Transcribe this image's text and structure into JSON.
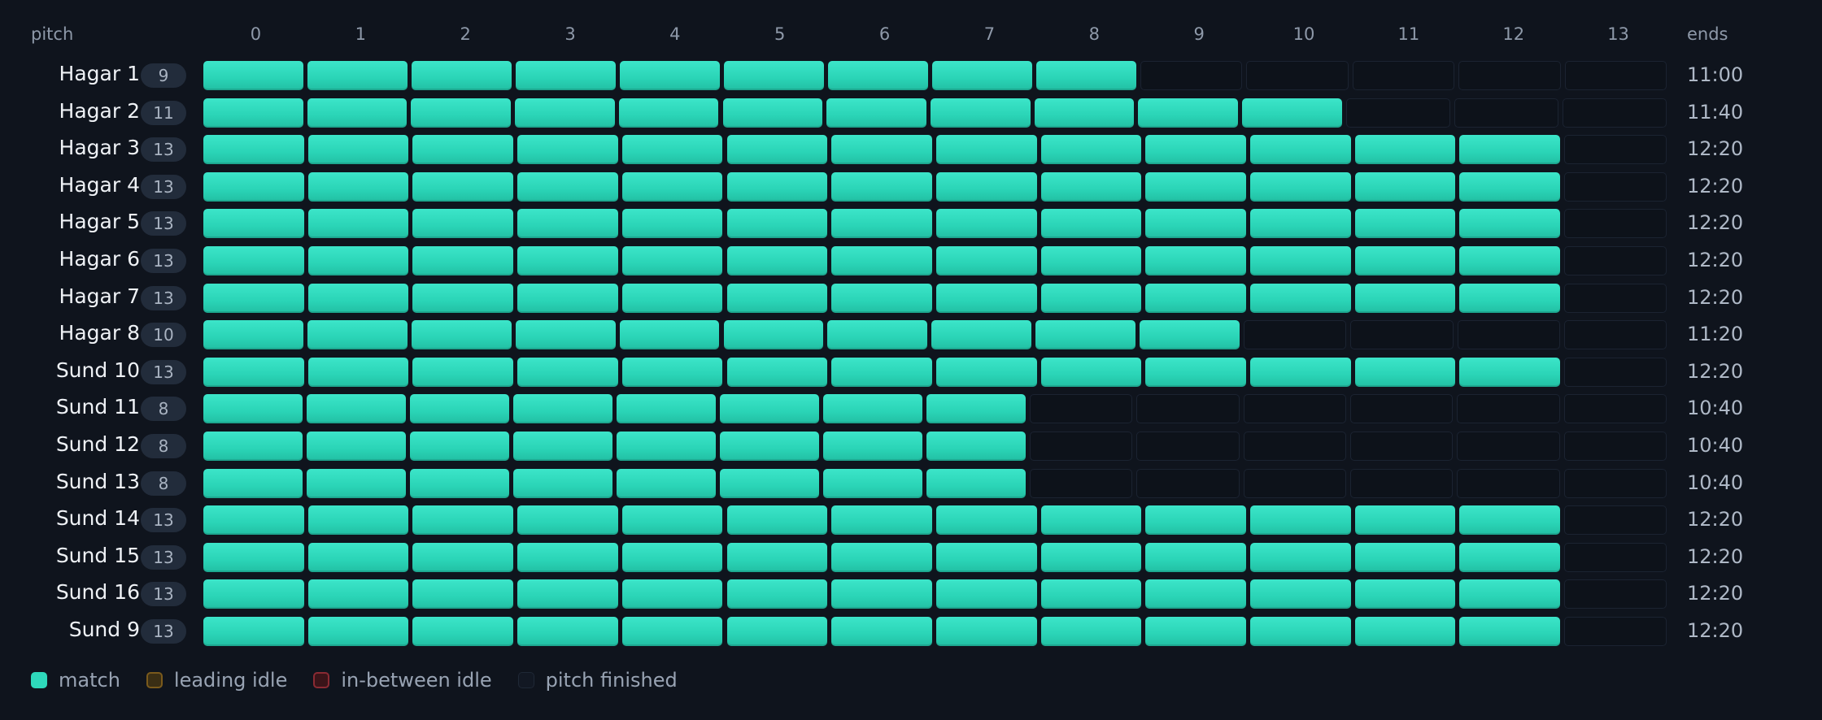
{
  "header": {
    "pitch_label": "pitch",
    "ends_label": "ends",
    "columns": [
      "0",
      "1",
      "2",
      "3",
      "4",
      "5",
      "6",
      "7",
      "8",
      "9",
      "10",
      "11",
      "12",
      "13"
    ]
  },
  "rows": [
    {
      "name": "Hagar 1",
      "count": "9",
      "ends": "11:00"
    },
    {
      "name": "Hagar 2",
      "count": "11",
      "ends": "11:40"
    },
    {
      "name": "Hagar 3",
      "count": "13",
      "ends": "12:20"
    },
    {
      "name": "Hagar 4",
      "count": "13",
      "ends": "12:20"
    },
    {
      "name": "Hagar 5",
      "count": "13",
      "ends": "12:20"
    },
    {
      "name": "Hagar 6",
      "count": "13",
      "ends": "12:20"
    },
    {
      "name": "Hagar 7",
      "count": "13",
      "ends": "12:20"
    },
    {
      "name": "Hagar 8",
      "count": "10",
      "ends": "11:20"
    },
    {
      "name": "Sund 10",
      "count": "13",
      "ends": "12:20"
    },
    {
      "name": "Sund 11",
      "count": "8",
      "ends": "10:40"
    },
    {
      "name": "Sund 12",
      "count": "8",
      "ends": "10:40"
    },
    {
      "name": "Sund 13",
      "count": "8",
      "ends": "10:40"
    },
    {
      "name": "Sund 14",
      "count": "13",
      "ends": "12:20"
    },
    {
      "name": "Sund 15",
      "count": "13",
      "ends": "12:20"
    },
    {
      "name": "Sund 16",
      "count": "13",
      "ends": "12:20"
    },
    {
      "name": "Sund 9",
      "count": "13",
      "ends": "12:20"
    }
  ],
  "legend": [
    {
      "key": "match",
      "label": "match"
    },
    {
      "key": "leading",
      "label": "leading idle"
    },
    {
      "key": "between",
      "label": "in-between idle"
    },
    {
      "key": "finished",
      "label": "pitch finished"
    }
  ],
  "colors": {
    "match": "#2ed9bb",
    "background": "#0f141d",
    "finished": "#0d121a"
  }
}
